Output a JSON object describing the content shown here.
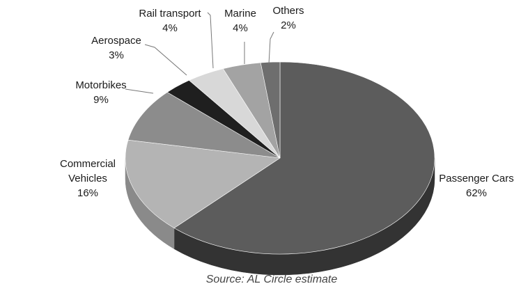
{
  "chart_data": {
    "type": "pie",
    "style": "3d",
    "slices": [
      {
        "label": "Passenger Cars",
        "value_label": "62%",
        "value": 62,
        "color": "#5c5c5c",
        "side_color": "#333333"
      },
      {
        "label": "Commercial Vehicles",
        "label_lines": [
          "Commercial",
          "Vehicles"
        ],
        "value_label": "16%",
        "value": 16,
        "color": "#b4b4b4",
        "side_color": "#8a8a8a"
      },
      {
        "label": "Motorbikes",
        "value_label": "9%",
        "value": 9,
        "color": "#8c8c8c",
        "side_color": "#6a6a6a"
      },
      {
        "label": "Aerospace",
        "value_label": "3%",
        "value": 3,
        "color": "#1f1f1f",
        "side_color": "#111111"
      },
      {
        "label": "Rail transport",
        "value_label": "4%",
        "value": 4,
        "color": "#d8d8d8",
        "side_color": "#b0b0b0"
      },
      {
        "label": "Marine",
        "value_label": "4%",
        "value": 4,
        "color": "#a3a3a3",
        "side_color": "#7f7f7f"
      },
      {
        "label": "Others",
        "value_label": "2%",
        "value": 2,
        "color": "#6e6e6e",
        "side_color": "#505050"
      }
    ],
    "legend": "none",
    "source": "Source: AL Circle estimate"
  }
}
